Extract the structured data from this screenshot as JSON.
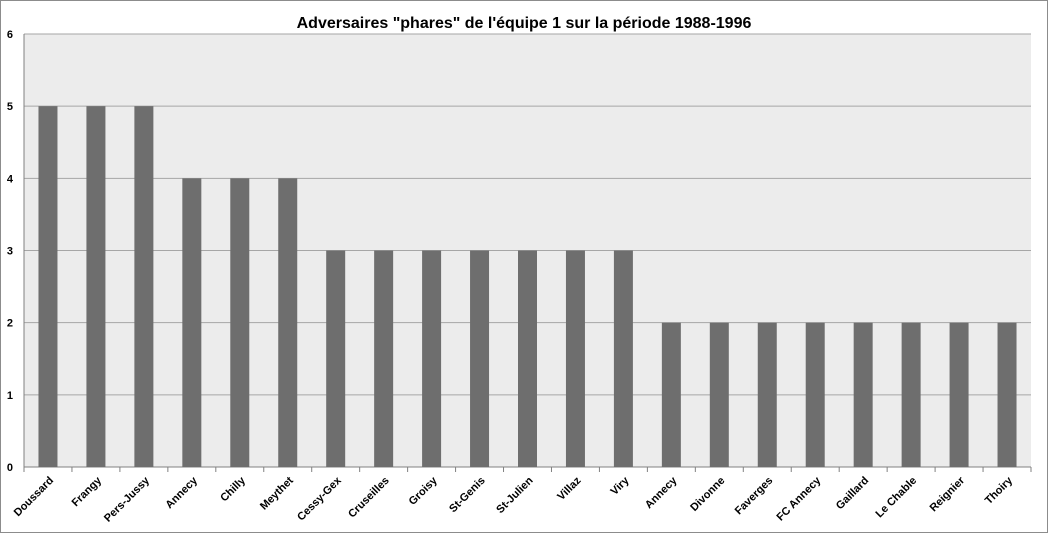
{
  "chart_data": {
    "type": "bar",
    "title": "Adversaires \"phares\" de l'équipe 1 sur la période 1988-1996",
    "xlabel": "",
    "ylabel": "",
    "ylim": [
      0,
      6
    ],
    "yticks": [
      "0",
      "1",
      "2",
      "3",
      "4",
      "5",
      "6"
    ],
    "grid": true,
    "legend": "none",
    "categories": [
      "Doussard",
      "Frangy",
      "Pers-Jussy",
      "Annecy",
      "Chilly",
      "Meythet",
      "Cessy-Gex",
      "Cruseilles",
      "Groisy",
      "St-Genis",
      "St-Julien",
      "Villaz",
      "Viry",
      "Annecy",
      "Divonne",
      "Faverges",
      "FC Annecy",
      "Gaillard",
      "Le Chable",
      "Reignier",
      "Thoiry"
    ],
    "values": [
      5,
      5,
      5,
      4,
      4,
      4,
      3,
      3,
      3,
      3,
      3,
      3,
      3,
      2,
      2,
      2,
      2,
      2,
      2,
      2,
      2
    ],
    "colors": {
      "bar": "#6e6e6e",
      "plot_background": "#ececec",
      "gridline": "#a6a6a6",
      "axis": "#808080"
    }
  }
}
